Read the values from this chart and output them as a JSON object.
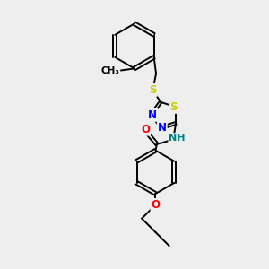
{
  "bg_color": "#eeeeee",
  "bond_color": "#000000",
  "bond_width": 1.4,
  "atom_colors": {
    "S": "#cccc00",
    "N": "#0000ff",
    "O": "#ff0000",
    "H": "#008080",
    "C": "#000000"
  },
  "font_size_atom": 8.5
}
